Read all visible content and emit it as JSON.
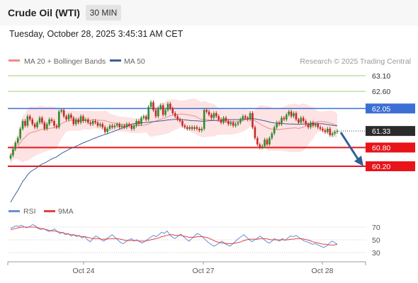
{
  "header": {
    "title": "Crude Oil (WTI)",
    "timeframe": "30 MIN"
  },
  "datetime": "Tuesday, October 28, 2025 3:45:31 AM CET",
  "legend": {
    "ma20": "MA 20 + Bollinger Bands",
    "ma50": "MA 50",
    "credit": "Research © 2025 Trading Central"
  },
  "rsi_legend": {
    "rsi": "RSI",
    "ma9": "9MA"
  },
  "colors": {
    "ma20": "#f08a8a",
    "ma50": "#3a5f95",
    "bands": "#fde3e3",
    "resistance": "#9bd17a",
    "support": "#e8141a",
    "pivot": "#3b6fd4",
    "current": "#2b2b2b",
    "arrow": "#2f5e98",
    "up_candle": "#2e8b2e",
    "down_candle": "#c62828",
    "rsi": "#6a8fd6",
    "rsi_ma": "#e04040"
  },
  "chart_data": {
    "type": "candlestick",
    "instrument": "Crude Oil (WTI)",
    "interval": "30 MIN",
    "x_labels": [
      "Oct 24",
      "Oct 27",
      "Oct 28"
    ],
    "levels": [
      {
        "value": 63.1,
        "label": "63.10",
        "kind": "resistance"
      },
      {
        "value": 62.6,
        "label": "62.60",
        "kind": "resistance"
      },
      {
        "value": 62.05,
        "label": "62.05",
        "kind": "pivot"
      },
      {
        "value": 61.33,
        "label": "61.33",
        "kind": "current"
      },
      {
        "value": 60.8,
        "label": "60.80",
        "kind": "support"
      },
      {
        "value": 60.2,
        "label": "60.20",
        "kind": "support"
      }
    ],
    "close": [
      60.55,
      60.75,
      60.95,
      61.1,
      61.4,
      61.65,
      61.5,
      61.8,
      61.7,
      61.55,
      61.45,
      61.6,
      61.75,
      61.6,
      61.4,
      61.55,
      61.7,
      61.65,
      61.5,
      61.45,
      61.95,
      62.0,
      61.8,
      61.7,
      61.85,
      61.75,
      61.55,
      61.7,
      61.6,
      61.8,
      61.65,
      61.7,
      61.6,
      61.55,
      61.65,
      61.6,
      61.5,
      61.55,
      61.45,
      61.3,
      61.4,
      61.5,
      61.45,
      61.5,
      61.55,
      61.45,
      61.5,
      61.45,
      61.55,
      61.5,
      61.4,
      61.5,
      61.65,
      61.55,
      61.75,
      61.8,
      61.7,
      62.1,
      62.25,
      62.0,
      61.8,
      62.05,
      62.15,
      61.85,
      62.0,
      62.2,
      62.05,
      61.9,
      61.8,
      61.7,
      61.65,
      61.5,
      61.45,
      61.4,
      61.45,
      61.4,
      61.45,
      61.4,
      61.35,
      61.4,
      62.0,
      61.95,
      61.85,
      61.75,
      61.9,
      61.8,
      61.7,
      61.6,
      61.75,
      61.65,
      61.55,
      61.6,
      61.5,
      61.55,
      61.6,
      61.7,
      61.8,
      61.75,
      61.7,
      61.9,
      61.45,
      61.1,
      60.9,
      60.8,
      60.85,
      61.05,
      60.9,
      61.1,
      61.25,
      61.45,
      61.6,
      61.55,
      61.75,
      61.7,
      61.85,
      61.95,
      61.8,
      61.9,
      61.7,
      61.6,
      61.75,
      61.65,
      61.55,
      61.45,
      61.6,
      61.5,
      61.55,
      61.45,
      61.4,
      61.35,
      61.3,
      61.4,
      61.2,
      61.25,
      61.3,
      61.33
    ],
    "rsi": {
      "levels": [
        70,
        50,
        30
      ],
      "rsi": [
        68,
        70,
        72,
        71,
        73,
        70,
        69,
        71,
        74,
        72,
        68,
        66,
        68,
        65,
        63,
        65,
        67,
        63,
        60,
        62,
        58,
        60,
        56,
        58,
        55,
        57,
        53,
        55,
        50,
        47,
        52,
        56,
        54,
        50,
        48,
        52,
        55,
        58,
        54,
        50,
        46,
        44,
        47,
        50,
        52,
        48,
        50,
        47,
        45,
        48,
        51,
        54,
        57,
        55,
        58,
        62,
        60,
        64,
        58,
        54,
        52,
        56,
        59,
        55,
        51,
        48,
        52,
        56,
        60,
        58,
        54,
        50,
        46,
        43,
        40,
        42,
        45,
        48,
        44,
        42,
        40,
        44,
        48,
        52,
        55,
        58,
        54,
        50,
        47,
        50,
        53,
        56,
        52,
        48,
        45,
        47,
        52,
        50,
        48,
        52,
        49,
        53,
        56,
        55,
        57,
        54,
        51,
        48,
        47,
        45,
        43,
        44,
        42,
        40,
        38,
        40,
        44,
        48,
        46,
        43
      ],
      "ma9": [
        66,
        67,
        68,
        69,
        70,
        70,
        70,
        70,
        70,
        70,
        69,
        68,
        67,
        66,
        65,
        64,
        64,
        63,
        62,
        61,
        60,
        59,
        58,
        58,
        57,
        56,
        55,
        55,
        54,
        53,
        52,
        52,
        52,
        51,
        51,
        51,
        52,
        52,
        52,
        52,
        51,
        50,
        49,
        49,
        49,
        49,
        49,
        48,
        48,
        48,
        49,
        50,
        51,
        52,
        53,
        55,
        56,
        57,
        58,
        58,
        57,
        57,
        57,
        56,
        55,
        54,
        54,
        54,
        55,
        55,
        55,
        54,
        53,
        51,
        49,
        47,
        46,
        45,
        45,
        44,
        44,
        44,
        45,
        46,
        47,
        49,
        50,
        51,
        51,
        51,
        51,
        52,
        52,
        52,
        51,
        50,
        50,
        50,
        50,
        50,
        50,
        50,
        51,
        51,
        52,
        52,
        52,
        51,
        50,
        49,
        47,
        46,
        45,
        44,
        43,
        43,
        42,
        42,
        42,
        43
      ]
    }
  }
}
